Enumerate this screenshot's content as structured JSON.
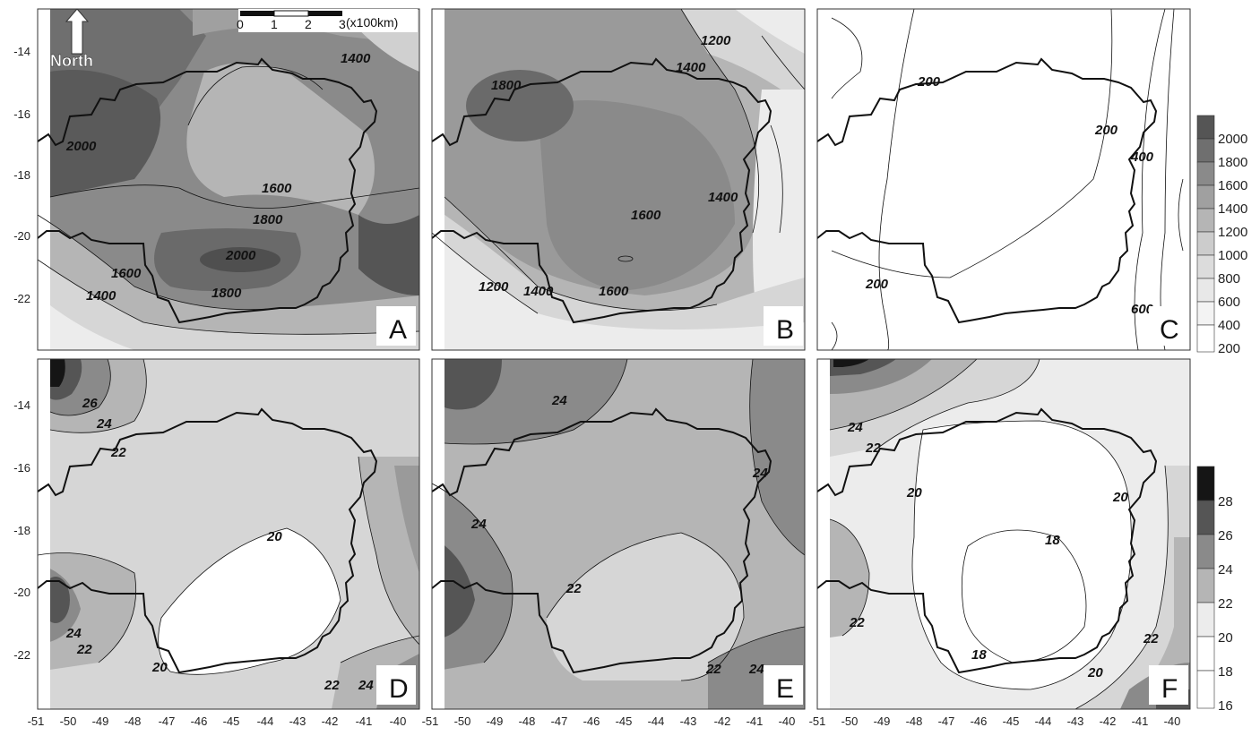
{
  "figure": {
    "y_axis_ticks": [
      "-14",
      "-16",
      "-18",
      "-20",
      "-22"
    ],
    "x_axis_ticks": [
      "-51",
      "-50",
      "-49",
      "-48",
      "-47",
      "-46",
      "-45",
      "-44",
      "-43",
      "-42",
      "-41",
      "-40"
    ],
    "north_label": "North",
    "scale_bar": {
      "ticks": [
        "0",
        "1",
        "2",
        "3"
      ],
      "unit": "(x100km)"
    },
    "colors": {
      "darkest": "#151515",
      "dark": "#555555",
      "mid": "#8a8a8a",
      "light": "#b5b5b5",
      "lighter": "#d6d6d6",
      "lightest": "#ececec",
      "white": "#ffffff"
    }
  },
  "panels": {
    "A": {
      "letter": "A",
      "labels": [
        "1400",
        "2000",
        "1600",
        "1800",
        "2000",
        "1600",
        "1400",
        "1800"
      ]
    },
    "B": {
      "letter": "B",
      "labels": [
        "1200",
        "1400",
        "1800",
        "1400",
        "1600",
        "1200",
        "1400",
        "1600"
      ]
    },
    "C": {
      "letter": "C",
      "labels": [
        "200",
        "200",
        "400",
        "200",
        "600"
      ]
    },
    "D": {
      "letter": "D",
      "labels": [
        "26",
        "24",
        "22",
        "20",
        "24",
        "22",
        "20",
        "22",
        "24"
      ]
    },
    "E": {
      "letter": "E",
      "labels": [
        "24",
        "24",
        "24",
        "22",
        "22",
        "24"
      ]
    },
    "F": {
      "letter": "F",
      "labels": [
        "24",
        "22",
        "20",
        "20",
        "18",
        "22",
        "18",
        "20",
        "22"
      ]
    }
  },
  "legend_top": {
    "labels": [
      "2000",
      "1800",
      "1600",
      "1400",
      "1200",
      "1000",
      "800",
      "600",
      "400",
      "200"
    ]
  },
  "legend_bottom": {
    "labels": [
      "28",
      "26",
      "24",
      "22",
      "20",
      "18",
      "16"
    ]
  }
}
